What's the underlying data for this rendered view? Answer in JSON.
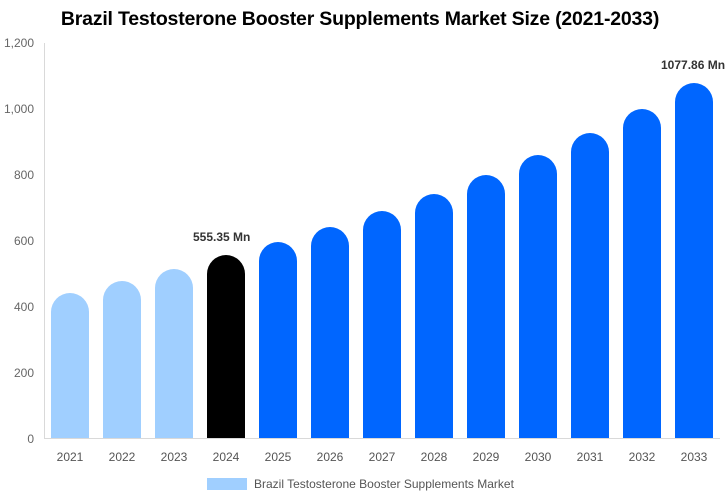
{
  "chart_data": {
    "type": "bar",
    "title": "Brazil Testosterone Booster Supplements Market Size (2021-2033)",
    "xlabel": "",
    "ylabel": "",
    "ylim": [
      0,
      1200
    ],
    "yticks": [
      "0",
      "200",
      "400",
      "600",
      "800",
      "1,000",
      "1,200"
    ],
    "grid": false,
    "legend_position": "bottom",
    "categories": [
      "2021",
      "2022",
      "2023",
      "2024",
      "2025",
      "2026",
      "2027",
      "2028",
      "2029",
      "2030",
      "2031",
      "2032",
      "2033"
    ],
    "series": [
      {
        "name": "Brazil Testosterone Booster Supplements Market",
        "values": [
          442,
          478,
          515,
          555.35,
          597,
          643,
          691,
          743,
          801,
          861,
          928,
          1001,
          1077.86
        ],
        "colors": [
          "#a0cfff",
          "#a0cfff",
          "#a0cfff",
          "#000000",
          "#0066ff",
          "#0066ff",
          "#0066ff",
          "#0066ff",
          "#0066ff",
          "#0066ff",
          "#0066ff",
          "#0066ff",
          "#0066ff"
        ]
      }
    ],
    "annotations": [
      {
        "category": "2024",
        "text": "555.35 Mn"
      },
      {
        "category": "2033",
        "text": "1077.86 Mn"
      }
    ]
  },
  "legend": {
    "label": "Brazil Testosterone Booster Supplements Market",
    "color": "#a0cfff"
  },
  "colors": {
    "historical": "#a0cfff",
    "base_year": "#000000",
    "forecast": "#0066ff"
  }
}
